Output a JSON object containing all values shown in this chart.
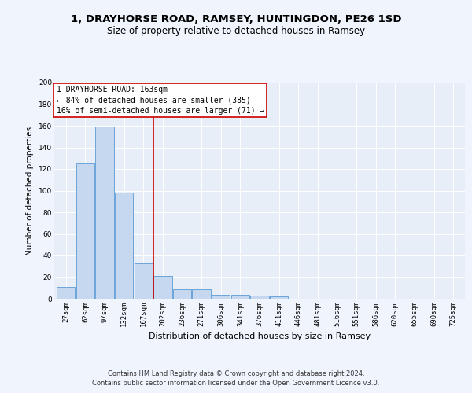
{
  "title1": "1, DRAYHORSE ROAD, RAMSEY, HUNTINGDON, PE26 1SD",
  "title2": "Size of property relative to detached houses in Ramsey",
  "xlabel": "Distribution of detached houses by size in Ramsey",
  "ylabel": "Number of detached properties",
  "categories": [
    "27sqm",
    "62sqm",
    "97sqm",
    "132sqm",
    "167sqm",
    "202sqm",
    "236sqm",
    "271sqm",
    "306sqm",
    "341sqm",
    "376sqm",
    "411sqm",
    "446sqm",
    "481sqm",
    "516sqm",
    "551sqm",
    "586sqm",
    "620sqm",
    "655sqm",
    "690sqm",
    "725sqm"
  ],
  "values": [
    11,
    125,
    159,
    98,
    33,
    21,
    9,
    9,
    4,
    4,
    3,
    2,
    0,
    0,
    0,
    0,
    0,
    0,
    0,
    0,
    0
  ],
  "bar_color": "#c5d8f0",
  "bar_edge_color": "#5b9bd5",
  "bg_color": "#e8eef8",
  "fig_color": "#f0f4fc",
  "vline_x": 4.5,
  "vline_color": "#cc0000",
  "annotation_box_text": "1 DRAYHORSE ROAD: 163sqm\n← 84% of detached houses are smaller (385)\n16% of semi-detached houses are larger (71) →",
  "annotation_box_color": "#cc0000",
  "ylim": [
    0,
    200
  ],
  "yticks": [
    0,
    20,
    40,
    60,
    80,
    100,
    120,
    140,
    160,
    180,
    200
  ],
  "footnote": "Contains HM Land Registry data © Crown copyright and database right 2024.\nContains public sector information licensed under the Open Government Licence v3.0.",
  "title1_fontsize": 9.5,
  "title2_fontsize": 8.5,
  "xlabel_fontsize": 8,
  "ylabel_fontsize": 7.5,
  "tick_fontsize": 6.5,
  "annot_fontsize": 7,
  "footnote_fontsize": 6
}
